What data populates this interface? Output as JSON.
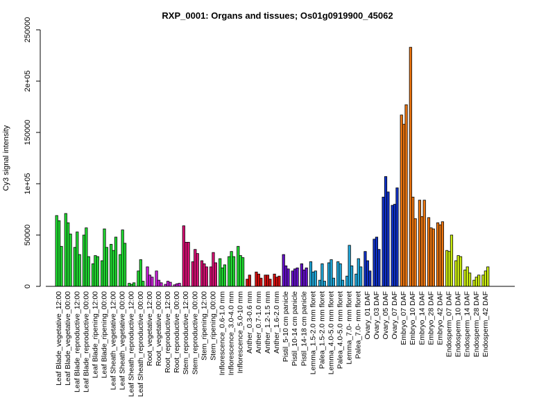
{
  "chart_data": {
    "type": "bar",
    "title": "RXP_0001: Organs and tissues; Os01g0919900_45062",
    "ylabel": "Cy3 signal intensity",
    "xlabel": "",
    "ylim": [
      0,
      250000
    ],
    "yticks": [
      {
        "value": 0,
        "label": "0"
      },
      {
        "value": 50000,
        "label": "50000"
      },
      {
        "value": 100000,
        "label": "1e+05"
      },
      {
        "value": 150000,
        "label": "150000"
      },
      {
        "value": 200000,
        "label": "2e+05"
      },
      {
        "value": 250000,
        "label": "250000"
      }
    ],
    "grid": false,
    "legend": "none",
    "groups": [
      {
        "label": "Leaf Blade_vegetative_12:00",
        "color": "#22e033",
        "values": [
          69000,
          64000,
          39000
        ]
      },
      {
        "label": "Leaf Blade_vegetative_00:00",
        "color": "#22e033",
        "values": [
          71000,
          62000,
          51000
        ]
      },
      {
        "label": "Leaf Blade_reproductive_12:00",
        "color": "#22e033",
        "values": [
          38000,
          53000,
          31000
        ]
      },
      {
        "label": "Leaf Blade_reproductive_00:00",
        "color": "#22e033",
        "values": [
          50000,
          57000,
          29000
        ]
      },
      {
        "label": "Leaf Blade_ripening_12:00",
        "color": "#22e033",
        "values": [
          22000,
          30000,
          29000
        ]
      },
      {
        "label": "Leaf Blade_ripening_00:00",
        "color": "#22e033",
        "values": [
          25000,
          56000,
          38000
        ]
      },
      {
        "label": "Leaf Sheath_vegetative_12:00",
        "color": "#22e033",
        "values": [
          41000,
          35000,
          48000
        ]
      },
      {
        "label": "Leaf Sheath_vegetative_00:00",
        "color": "#22e033",
        "values": [
          31000,
          55000,
          42000
        ]
      },
      {
        "label": "Leaf Sheath_reproductive_12:00",
        "color": "#22e033",
        "values": [
          3000,
          2000,
          3500
        ]
      },
      {
        "label": "Leaf Sheath_reproductive_00:00",
        "color": "#22e033",
        "values": [
          15000,
          26000,
          5000
        ]
      },
      {
        "label": "Root_vegetative_12:00",
        "color": "#cc22dd",
        "values": [
          19000,
          11000,
          9000
        ]
      },
      {
        "label": "Root_vegetative_00:00",
        "color": "#cc22dd",
        "values": [
          15000,
          6000,
          3500
        ]
      },
      {
        "label": "Root_reproductive_12:00",
        "color": "#cc22dd",
        "values": [
          2000,
          5000,
          4000
        ]
      },
      {
        "label": "Root_reproductive_00:00",
        "color": "#cc22dd",
        "values": [
          1500,
          2500,
          3000
        ]
      },
      {
        "label": "Stem_reproductive_12:00",
        "color": "#dd1177",
        "values": [
          59000,
          43000,
          43000
        ]
      },
      {
        "label": "Stem_reproductive_00:00",
        "color": "#dd1177",
        "values": [
          24000,
          36000,
          32000
        ]
      },
      {
        "label": "Stem_ripening_12:00",
        "color": "#dd1177",
        "values": [
          25000,
          22000,
          19000
        ]
      },
      {
        "label": "Stem_ripening_00:00",
        "color": "#dd1177",
        "values": [
          19000,
          33000,
          23000
        ]
      },
      {
        "label": "Inflorescence_0.6-1.0 mm",
        "color": "#22e033",
        "values": [
          27000,
          18000,
          21000
        ]
      },
      {
        "label": "Inflorescence_3.0-4.0 mm",
        "color": "#22e033",
        "values": [
          29000,
          34000,
          29000
        ]
      },
      {
        "label": "Inflorescence_5.0-10 mm",
        "color": "#22e033",
        "values": [
          39000,
          30000,
          28000
        ]
      },
      {
        "label": "Anther_0.3-0.6 mm",
        "color": "#dd1111",
        "values": [
          7000,
          11000
        ]
      },
      {
        "label": "Anther_0.7-1.0 mm",
        "color": "#dd1111",
        "values": [
          14000,
          12000,
          8000
        ]
      },
      {
        "label": "Anther_1.2-1.5 mm",
        "color": "#dd1111",
        "values": [
          11000,
          11000,
          7000
        ]
      },
      {
        "label": "Anther_1.6-2.0 mm",
        "color": "#dd1111",
        "values": [
          12000,
          9000,
          10000
        ]
      },
      {
        "label": "Pistil_5-10 cm panicle",
        "color": "#6611cc",
        "values": [
          31000,
          20000,
          17000
        ]
      },
      {
        "label": "Pistil_10-14 cm panicle",
        "color": "#6611cc",
        "values": [
          15000,
          17000,
          18000
        ]
      },
      {
        "label": "Pistil_14-18 cm panicle",
        "color": "#6611cc",
        "values": [
          22000,
          16000,
          18000
        ]
      },
      {
        "label": "Lemma_1.5-2.0 mm floret",
        "color": "#22aadd",
        "values": [
          24000,
          14000,
          15000
        ]
      },
      {
        "label": "Palea_1.5-2.0 mm floret",
        "color": "#22aadd",
        "values": [
          6000,
          22000,
          5000
        ]
      },
      {
        "label": "Lemma_4.0-5.0 mm floret",
        "color": "#22aadd",
        "values": [
          23000,
          26000,
          8000
        ]
      },
      {
        "label": "Palea_4.0-5.0 mm floret",
        "color": "#22aadd",
        "values": [
          24000,
          22000,
          6000
        ]
      },
      {
        "label": "Lemma_7.0- mm floret",
        "color": "#22aadd",
        "values": [
          10000,
          40000,
          20000
        ]
      },
      {
        "label": "Palea_7.0- mm floret",
        "color": "#22aadd",
        "values": [
          12000,
          27000,
          19000
        ]
      },
      {
        "label": "Ovary_01 DAF",
        "color": "#1133cc",
        "values": [
          34000,
          25000,
          15000
        ]
      },
      {
        "label": "Ovary_03 DAF",
        "color": "#1133cc",
        "values": [
          46000,
          48000,
          36000
        ]
      },
      {
        "label": "Ovary_05 DAF",
        "color": "#1133cc",
        "values": [
          87000,
          107000,
          92000
        ]
      },
      {
        "label": "Ovary_07 DAF",
        "color": "#1133cc",
        "values": [
          79000,
          80000,
          96000
        ]
      },
      {
        "label": "Embryo_07 DAF",
        "color": "#ee7711",
        "values": [
          167000,
          158000,
          177000
        ]
      },
      {
        "label": "Embryo_10 DAF",
        "color": "#ee7711",
        "values": [
          233000,
          87000,
          66000
        ]
      },
      {
        "label": "Embryo_14 DAF",
        "color": "#ee7711",
        "values": [
          84000,
          68000,
          84000
        ]
      },
      {
        "label": "Embryo_28 DAF",
        "color": "#ee7711",
        "values": [
          67000,
          57000,
          56000
        ]
      },
      {
        "label": "Embryo_42 DAF",
        "color": "#ee7711",
        "values": [
          62000,
          60000,
          63000
        ]
      },
      {
        "label": "Endosperm_07 DAF",
        "color": "#ccee11",
        "values": [
          35000,
          34000,
          50000
        ]
      },
      {
        "label": "Endosperm_10 DAF",
        "color": "#ccee11",
        "values": [
          25000,
          30000,
          29000
        ]
      },
      {
        "label": "Endosperm_14 DAF",
        "color": "#ccee11",
        "values": [
          16000,
          19000,
          13000
        ]
      },
      {
        "label": "Endosperm_28 DAF",
        "color": "#ccee11",
        "values": [
          6000,
          9000,
          11000
        ]
      },
      {
        "label": "Endosperm_42 DAF",
        "color": "#ccee11",
        "values": [
          11000,
          15000,
          19000
        ]
      }
    ]
  }
}
